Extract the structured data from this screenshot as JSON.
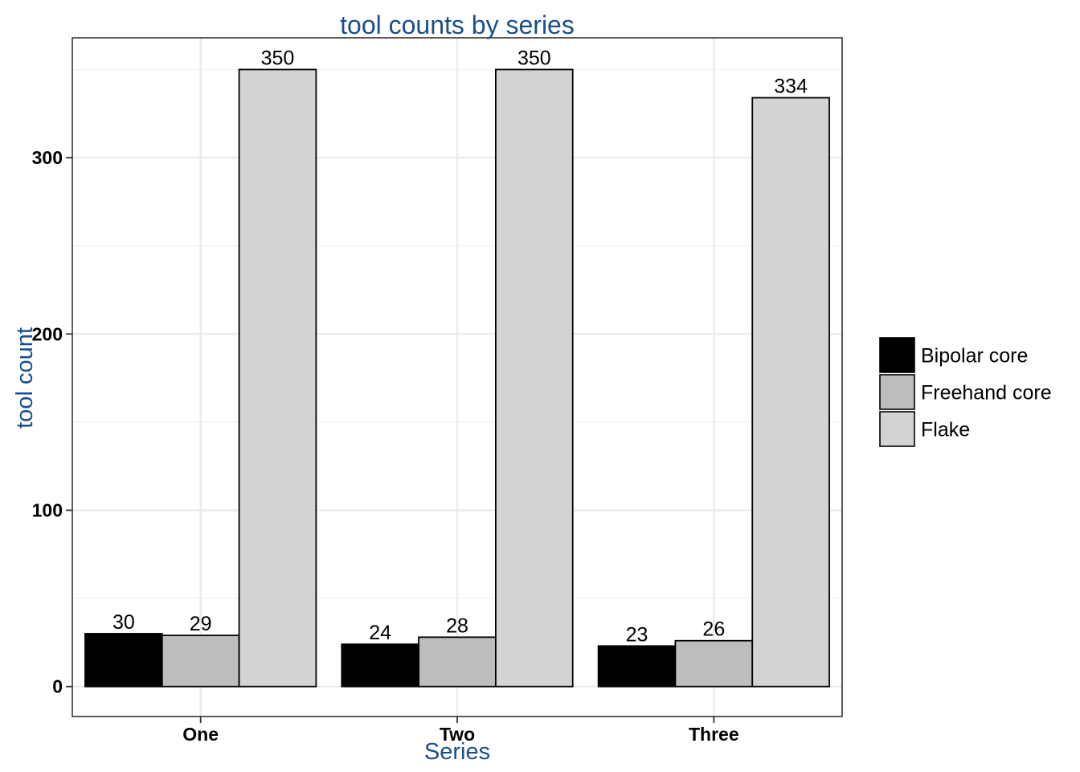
{
  "chart_data": {
    "type": "bar",
    "title": "tool counts by series",
    "xlabel": "Series",
    "ylabel": "tool count",
    "categories": [
      "One",
      "Two",
      "Three"
    ],
    "series": [
      {
        "name": "Bipolar core",
        "values": [
          30,
          24,
          23
        ],
        "color": "#000000"
      },
      {
        "name": "Freehand core",
        "values": [
          29,
          28,
          26
        ],
        "color": "#bdbdbd"
      },
      {
        "name": "Flake",
        "values": [
          350,
          350,
          334
        ],
        "color": "#d3d3d3"
      }
    ],
    "ylim": [
      -17,
      368
    ],
    "yticks": [
      0,
      100,
      200,
      300
    ],
    "grid": true,
    "legend_position": "right",
    "colors": {
      "title": "#1a4e8c",
      "grid": "#ebebeb",
      "panel_border": "#333333"
    }
  }
}
